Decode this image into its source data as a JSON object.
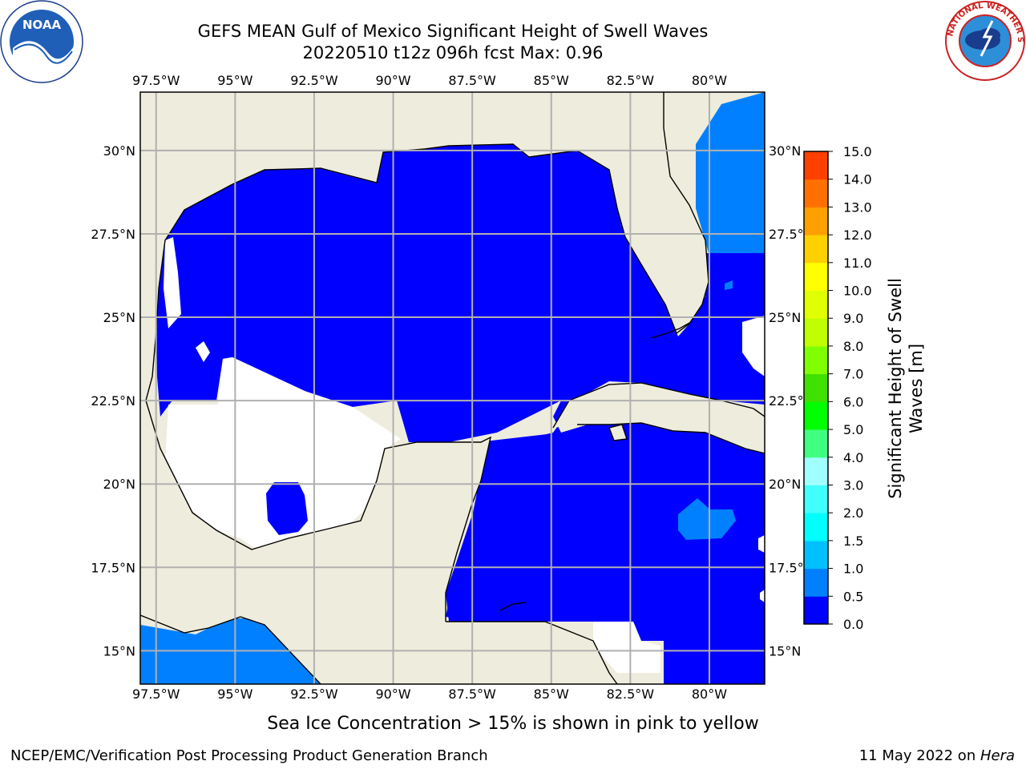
{
  "header": {
    "title_line1": "GEFS MEAN Gulf of Mexico Significant Height of Swell Waves",
    "title_line2": "20220510 t12z 096h fcst   Max: 0.96"
  },
  "logos": {
    "left": "noaa-logo",
    "right": "nws-logo"
  },
  "map": {
    "lon_labels": [
      "97.5°W",
      "95°W",
      "92.5°W",
      "90°W",
      "87.5°W",
      "85°W",
      "82.5°W",
      "80°W"
    ],
    "lat_labels": [
      "30°N",
      "27.5°N",
      "25°N",
      "22.5°N",
      "20°N",
      "17.5°N",
      "15°N"
    ],
    "lon_ticks": [
      -97.5,
      -95,
      -92.5,
      -90,
      -87.5,
      -85,
      -82.5,
      -80
    ],
    "lat_ticks": [
      30,
      27.5,
      25,
      22.5,
      20,
      17.5,
      15
    ],
    "extent": {
      "lon_min": -98,
      "lon_max": -78.25,
      "lat_min": 14,
      "lat_max": 31.75
    },
    "colors": {
      "land": "#eeecdc",
      "sea_low": "#0000ff",
      "sea_mid": "#0080ff",
      "no_data": "#ffffff",
      "grid": "#b0b0b0",
      "coast": "#000000"
    }
  },
  "colorbar": {
    "label": "Significant Height of Swell Waves [m]",
    "label_line1": "Significant Height of Swell",
    "label_line2": "Waves [m]",
    "ticks": [
      "0.0",
      "0.5",
      "1.0",
      "1.5",
      "2.0",
      "3.0",
      "4.0",
      "5.0",
      "6.0",
      "7.0",
      "8.0",
      "9.0",
      "10.0",
      "11.0",
      "12.0",
      "13.0",
      "14.0",
      "15.0"
    ],
    "colors": [
      "#0000ff",
      "#0080ff",
      "#00c0ff",
      "#00ffff",
      "#40ffff",
      "#a0ffff",
      "#40ff80",
      "#00ff00",
      "#40e000",
      "#80ff00",
      "#c0ff00",
      "#e0ff00",
      "#ffff00",
      "#ffd000",
      "#ffa000",
      "#ff7000",
      "#ff4000",
      "#ff0000"
    ]
  },
  "footnote": "Sea Ice Concentration > 15% is shown in pink to yellow",
  "credits": {
    "left": "NCEP/EMC/Verification Post Processing Product Generation Branch",
    "right_date": "11 May 2022 on ",
    "right_host": "Hera"
  }
}
